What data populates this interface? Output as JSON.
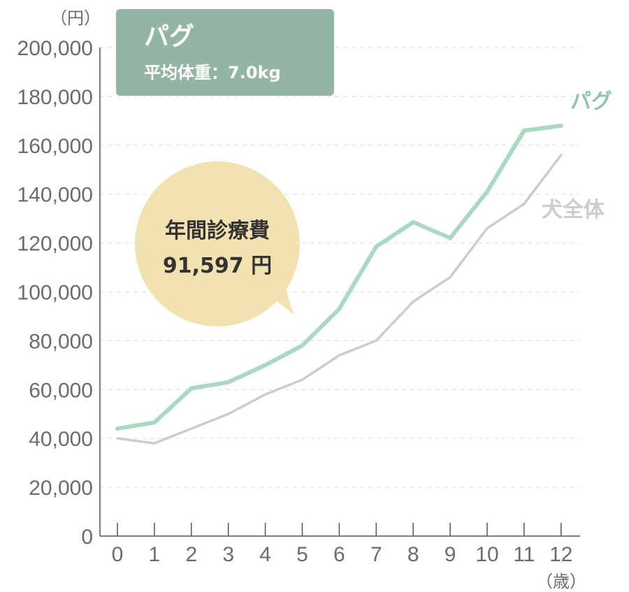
{
  "chart_data": {
    "type": "line",
    "title": "パグ",
    "subtitle": "平均体重：7.0kg",
    "y_unit": "（円）",
    "x_unit": "（歳）",
    "categories": [
      "0",
      "1",
      "2",
      "3",
      "4",
      "5",
      "6",
      "7",
      "8",
      "9",
      "10",
      "11",
      "12"
    ],
    "y_ticks": [
      "0",
      "20,000",
      "40,000",
      "60,000",
      "80,000",
      "100,000",
      "120,000",
      "140,000",
      "160,000",
      "180,000",
      "200,000"
    ],
    "ylim": [
      0,
      200000
    ],
    "grid": "horizontal-dashed",
    "series": [
      {
        "name": "パグ",
        "color": "#a9d9c1",
        "values": [
          44000,
          46500,
          60500,
          63000,
          70000,
          78000,
          93000,
          118500,
          128500,
          122000,
          141000,
          166000,
          168000
        ]
      },
      {
        "name": "犬全体",
        "color": "#cccccc",
        "values": [
          40000,
          38000,
          44000,
          50000,
          58000,
          64000,
          74000,
          80000,
          96000,
          106000,
          126000,
          136000,
          156000
        ]
      }
    ],
    "annotation": {
      "label": "年間診療費",
      "value": "91,597 円",
      "color": "#f2e2b0"
    },
    "title_box_color": "#93b5a3"
  }
}
